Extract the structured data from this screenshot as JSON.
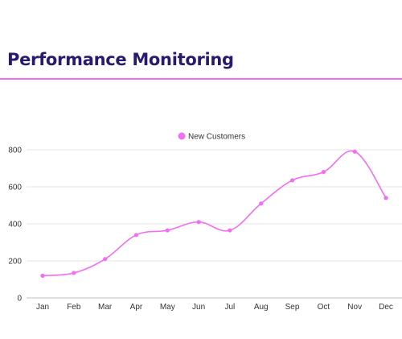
{
  "header": {
    "title": "Performance Monitoring"
  },
  "colors": {
    "title": "#2a1a6e",
    "accent": "#f46ef4",
    "grid": "#e6e6e6",
    "axis_text": "#333333"
  },
  "chart_data": {
    "type": "line",
    "title": "",
    "xlabel": "",
    "ylabel": "",
    "categories": [
      "Jan",
      "Feb",
      "Mar",
      "Apr",
      "May",
      "Jun",
      "Jul",
      "Aug",
      "Sep",
      "Oct",
      "Nov",
      "Dec"
    ],
    "series": [
      {
        "name": "New Customers",
        "color": "#f46ef4",
        "values": [
          120,
          135,
          210,
          340,
          365,
          410,
          365,
          510,
          635,
          680,
          790,
          540
        ]
      }
    ],
    "ylim": [
      0,
      800
    ],
    "yticks": [
      0,
      200,
      400,
      600,
      800
    ],
    "grid": true,
    "legend_position": "top-center",
    "smooth": true
  }
}
